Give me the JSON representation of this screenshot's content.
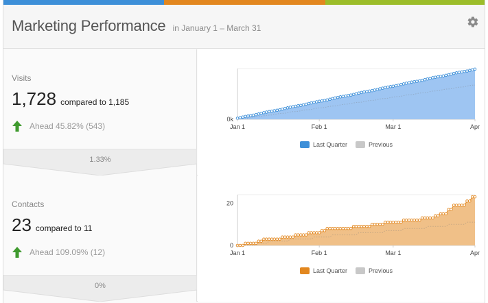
{
  "header": {
    "title": "Marketing Performance",
    "range": "in January 1 – March 31",
    "settings_icon": "gear-icon"
  },
  "topbar_colors": [
    "#3d8fd8",
    "#e2871f",
    "#9cbd2a"
  ],
  "metrics": [
    {
      "label": "Visits",
      "value": "1,728",
      "compared": "compared to 1,185",
      "ahead": "Ahead 45.82% (543)",
      "conversion": "1.33%",
      "color": "#3d8fd8",
      "fill": "#9ec5f2",
      "chart_data": {
        "type": "area",
        "y_ticks": [
          "0k"
        ],
        "x_ticks": [
          "Jan 1",
          "Feb 1",
          "Mar 1",
          "Apr"
        ],
        "legend": [
          {
            "name": "Last Quarter",
            "color": "#3d8fd8"
          },
          {
            "name": "Previous",
            "color": "#c8c8c8"
          }
        ],
        "current_end": 1728,
        "previous_end": 1185,
        "ymax": 1750
      }
    },
    {
      "label": "Contacts",
      "value": "23",
      "compared": "compared to 11",
      "ahead": "Ahead 109.09% (12)",
      "conversion": "0%",
      "color": "#e2871f",
      "fill": "#f0c088",
      "chart_data": {
        "type": "area",
        "y_ticks": [
          "20",
          "0"
        ],
        "x_ticks": [
          "Jan 1",
          "Feb 1",
          "Mar 1",
          "Apr"
        ],
        "legend": [
          {
            "name": "Last Quarter",
            "color": "#e2871f"
          },
          {
            "name": "Previous",
            "color": "#c8c8c8"
          }
        ],
        "steps": [
          0,
          1,
          1,
          2,
          3,
          3,
          3,
          4,
          4,
          5,
          5,
          6,
          6,
          7,
          8,
          8,
          8,
          8,
          9,
          9,
          9,
          10,
          10,
          11,
          11,
          11,
          12,
          12,
          12,
          13,
          13,
          14,
          15,
          17,
          19,
          19,
          21,
          23
        ],
        "previous_steps": [
          0,
          0,
          0,
          1,
          1,
          2,
          2,
          2,
          3,
          3,
          3,
          3,
          4,
          4,
          4,
          5,
          5,
          5,
          5,
          6,
          6,
          6,
          6,
          7,
          7,
          7,
          8,
          8,
          8,
          8,
          9,
          9,
          9,
          10,
          10,
          10,
          11,
          11
        ],
        "ymax": 24
      }
    }
  ]
}
